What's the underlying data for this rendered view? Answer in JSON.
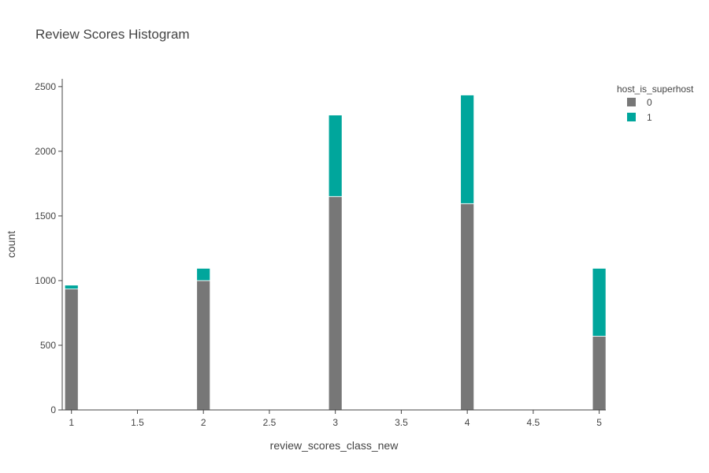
{
  "chart_data": {
    "type": "bar",
    "barmode": "stack",
    "title": "Review Scores Histogram",
    "xlabel": "review_scores_class_new",
    "ylabel": "count",
    "x": [
      1,
      2,
      3,
      4,
      5
    ],
    "xlim": [
      0.93,
      5.05
    ],
    "ylim": [
      0,
      2560
    ],
    "x_ticks": [
      "1",
      "1.5",
      "2",
      "2.5",
      "3",
      "3.5",
      "4",
      "4.5",
      "5"
    ],
    "y_ticks": [
      "0",
      "500",
      "1000",
      "1500",
      "2000",
      "2500"
    ],
    "grid": false,
    "legend": {
      "title": "host_is_superhost",
      "position": "top-right"
    },
    "series": [
      {
        "name": "0",
        "color": "#777777",
        "values": [
          935,
          1000,
          1650,
          1595,
          570
        ]
      },
      {
        "name": "1",
        "color": "#00A69C",
        "values": [
          30,
          95,
          630,
          840,
          525
        ]
      }
    ]
  }
}
